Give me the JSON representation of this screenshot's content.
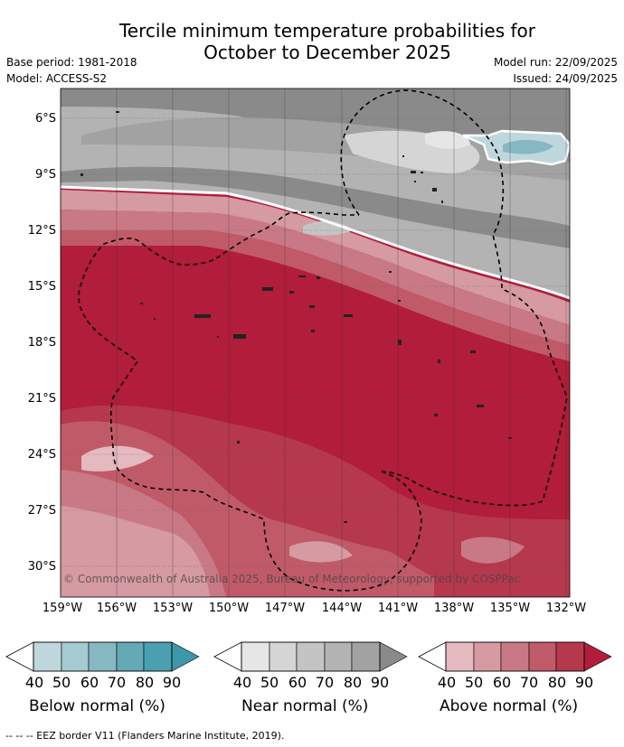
{
  "title": {
    "line1": "Tercile minimum temperature probabilities for",
    "line2": "October to December 2025"
  },
  "meta": {
    "base_period": "Base period: 1981-2018",
    "model": "Model: ACCESS-S2",
    "model_run": "Model run: 22/09/2025",
    "issued": "Issued: 24/09/2025"
  },
  "map": {
    "lat_labels": [
      "6°S",
      "9°S",
      "12°S",
      "15°S",
      "18°S",
      "21°S",
      "24°S",
      "27°S",
      "30°S"
    ],
    "lon_labels": [
      "159°W",
      "156°W",
      "153°W",
      "150°W",
      "147°W",
      "144°W",
      "141°W",
      "138°W",
      "135°W",
      "132°W"
    ],
    "copyright": "© Commonwealth of Australia 2025, Bureau of Meteorology, supported by COSPPac"
  },
  "legends": [
    {
      "caption": "Below normal (%)",
      "ticks": [
        "40",
        "50",
        "60",
        "70",
        "80",
        "90"
      ],
      "colors": [
        "#bfd7dc",
        "#a3cbd1",
        "#86b8c2",
        "#64a9b8",
        "#4aa0b1",
        "#3d97aa"
      ]
    },
    {
      "caption": "Near normal (%)",
      "ticks": [
        "40",
        "50",
        "60",
        "70",
        "80",
        "90"
      ],
      "colors": [
        "#e6e6e6",
        "#d5d5d5",
        "#c4c4c4",
        "#b3b3b3",
        "#a2a2a2",
        "#8a8a8a"
      ]
    },
    {
      "caption": "Above normal (%)",
      "ticks": [
        "40",
        "50",
        "60",
        "70",
        "80",
        "90"
      ],
      "colors": [
        "#e4b9c0",
        "#d59aa2",
        "#c97985",
        "#c05a69",
        "#b6384d",
        "#b11d3a"
      ]
    }
  ],
  "footnote": "-- -- -- EEZ border V11 (Flanders Marine Institute, 2019)."
}
